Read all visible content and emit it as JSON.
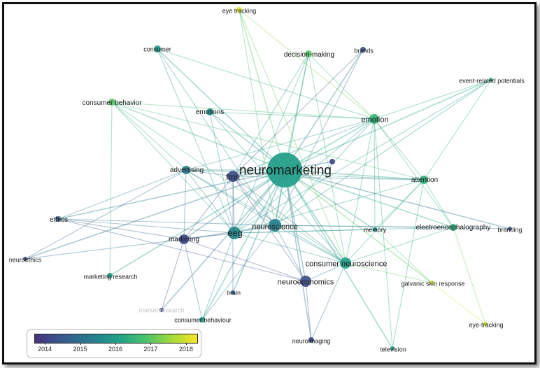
{
  "network": {
    "nodes": [
      {
        "id": "neuromarketing",
        "label": "neuromarketing",
        "year": 2015.9,
        "weight": 10
      },
      {
        "id": "eye-tracking-top",
        "label": "eye tracking",
        "year": 2018.0,
        "weight": 1
      },
      {
        "id": "consumer",
        "label": "consumer",
        "year": 2015.8,
        "weight": 2
      },
      {
        "id": "decision-making",
        "label": "decision-making",
        "year": 2016.9,
        "weight": 2
      },
      {
        "id": "brands",
        "label": "brands",
        "year": 2014.3,
        "weight": 1
      },
      {
        "id": "event-related-potentials",
        "label": "event-related potentials",
        "year": 2016.2,
        "weight": 1
      },
      {
        "id": "consumer-behavior",
        "label": "consumer behavior",
        "year": 2016.9,
        "weight": 2
      },
      {
        "id": "emotions",
        "label": "emotions",
        "year": 2015.6,
        "weight": 2
      },
      {
        "id": "emotion",
        "label": "emotion",
        "year": 2016.4,
        "weight": 3
      },
      {
        "id": "advertising",
        "label": "advertising",
        "year": 2015.2,
        "weight": 2
      },
      {
        "id": "fmri",
        "label": "fmri",
        "year": 2014.2,
        "weight": 3
      },
      {
        "id": "unlabeled",
        "label": "",
        "year": 2014.1,
        "weight": 1
      },
      {
        "id": "attention",
        "label": "attention",
        "year": 2016.3,
        "weight": 2
      },
      {
        "id": "ethics",
        "label": "ethics",
        "year": 2014.6,
        "weight": 1
      },
      {
        "id": "marketing",
        "label": "marketing",
        "year": 2014.1,
        "weight": 2
      },
      {
        "id": "eeg",
        "label": "eeg",
        "year": 2015.4,
        "weight": 4
      },
      {
        "id": "neuroscience",
        "label": "neuroscience",
        "year": 2015.3,
        "weight": 3
      },
      {
        "id": "memory",
        "label": "memory",
        "year": 2015.7,
        "weight": 1
      },
      {
        "id": "electroencephalography",
        "label": "electroencephalography",
        "year": 2016.3,
        "weight": 2
      },
      {
        "id": "branding",
        "label": "branding",
        "year": 2014.2,
        "weight": 1
      },
      {
        "id": "neuroethics",
        "label": "neuroethics",
        "year": 2014.1,
        "weight": 1
      },
      {
        "id": "consumer-neuroscience",
        "label": "consumer neuroscience",
        "year": 2016.0,
        "weight": 3
      },
      {
        "id": "marketing-research",
        "label": "marketing research",
        "year": 2015.9,
        "weight": 1
      },
      {
        "id": "neuroeconomics",
        "label": "neuroeconomics",
        "year": 2014.2,
        "weight": 3
      },
      {
        "id": "galvanic-skin-response",
        "label": "galvanic skin response",
        "year": 2018.0,
        "weight": 1
      },
      {
        "id": "brain",
        "label": "brain",
        "year": 2014.6,
        "weight": 1
      },
      {
        "id": "market-research",
        "label": "market research",
        "year": 2014.0,
        "weight": 1
      },
      {
        "id": "consumer-behaviour",
        "label": "consumer behaviour",
        "year": 2015.8,
        "weight": 1
      },
      {
        "id": "eye-tracking-bottom",
        "label": "eye-tracking",
        "year": 2017.9,
        "weight": 1
      },
      {
        "id": "neuroimaging",
        "label": "neuroimaging",
        "year": 2014.1,
        "weight": 1
      },
      {
        "id": "television",
        "label": "television",
        "year": 2015.9,
        "weight": 1
      }
    ],
    "edges": [
      [
        "neuromarketing",
        "eye-tracking-top"
      ],
      [
        "neuromarketing",
        "consumer"
      ],
      [
        "neuromarketing",
        "decision-making"
      ],
      [
        "neuromarketing",
        "brands"
      ],
      [
        "neuromarketing",
        "event-related-potentials"
      ],
      [
        "neuromarketing",
        "consumer-behavior"
      ],
      [
        "neuromarketing",
        "emotions"
      ],
      [
        "neuromarketing",
        "emotion"
      ],
      [
        "neuromarketing",
        "advertising"
      ],
      [
        "neuromarketing",
        "fmri"
      ],
      [
        "neuromarketing",
        "unlabeled"
      ],
      [
        "neuromarketing",
        "attention"
      ],
      [
        "neuromarketing",
        "ethics"
      ],
      [
        "neuromarketing",
        "marketing"
      ],
      [
        "neuromarketing",
        "eeg"
      ],
      [
        "neuromarketing",
        "neuroscience"
      ],
      [
        "neuromarketing",
        "memory"
      ],
      [
        "neuromarketing",
        "electroencephalography"
      ],
      [
        "neuromarketing",
        "branding"
      ],
      [
        "neuromarketing",
        "neuroethics"
      ],
      [
        "neuromarketing",
        "consumer-neuroscience"
      ],
      [
        "neuromarketing",
        "marketing-research"
      ],
      [
        "neuromarketing",
        "neuroeconomics"
      ],
      [
        "neuromarketing",
        "galvanic-skin-response"
      ],
      [
        "neuromarketing",
        "brain"
      ],
      [
        "neuromarketing",
        "market-research"
      ],
      [
        "neuromarketing",
        "consumer-behaviour"
      ],
      [
        "neuromarketing",
        "neuroimaging"
      ],
      [
        "neuromarketing",
        "television"
      ],
      [
        "eye-tracking-top",
        "emotion"
      ],
      [
        "eye-tracking-top",
        "neuroscience"
      ],
      [
        "eye-tracking-top",
        "consumer-neuroscience"
      ],
      [
        "consumer",
        "eeg"
      ],
      [
        "consumer",
        "emotion"
      ],
      [
        "consumer",
        "neuroscience"
      ],
      [
        "decision-making",
        "eeg"
      ],
      [
        "decision-making",
        "neuroscience"
      ],
      [
        "decision-making",
        "consumer-neuroscience"
      ],
      [
        "decision-making",
        "emotion"
      ],
      [
        "decision-making",
        "fmri"
      ],
      [
        "brands",
        "fmri"
      ],
      [
        "brands",
        "neuroscience"
      ],
      [
        "event-related-potentials",
        "eeg"
      ],
      [
        "event-related-potentials",
        "emotion"
      ],
      [
        "event-related-potentials",
        "neuroscience"
      ],
      [
        "event-related-potentials",
        "attention"
      ],
      [
        "consumer-behavior",
        "eeg"
      ],
      [
        "consumer-behavior",
        "emotion"
      ],
      [
        "consumer-behavior",
        "attention"
      ],
      [
        "consumer-behavior",
        "marketing-research"
      ],
      [
        "consumer-behavior",
        "advertising"
      ],
      [
        "consumer-behavior",
        "consumer-neuroscience"
      ],
      [
        "emotions",
        "eeg"
      ],
      [
        "emotions",
        "consumer-neuroscience"
      ],
      [
        "emotions",
        "emotion"
      ],
      [
        "emotion",
        "eeg"
      ],
      [
        "emotion",
        "attention"
      ],
      [
        "emotion",
        "advertising"
      ],
      [
        "emotion",
        "memory"
      ],
      [
        "emotion",
        "electroencephalography"
      ],
      [
        "emotion",
        "fmri"
      ],
      [
        "emotion",
        "neuroscience"
      ],
      [
        "emotion",
        "consumer-neuroscience"
      ],
      [
        "emotion",
        "television"
      ],
      [
        "advertising",
        "eeg"
      ],
      [
        "advertising",
        "attention"
      ],
      [
        "advertising",
        "ethics"
      ],
      [
        "advertising",
        "marketing"
      ],
      [
        "advertising",
        "neuroscience"
      ],
      [
        "advertising",
        "consumer-neuroscience"
      ],
      [
        "advertising",
        "fmri"
      ],
      [
        "advertising",
        "neuroethics"
      ],
      [
        "fmri",
        "eeg"
      ],
      [
        "fmri",
        "marketing"
      ],
      [
        "fmri",
        "neuroeconomics"
      ],
      [
        "fmri",
        "consumer-neuroscience"
      ],
      [
        "fmri",
        "neuroscience"
      ],
      [
        "fmri",
        "brain"
      ],
      [
        "fmri",
        "attention"
      ],
      [
        "attention",
        "eeg"
      ],
      [
        "attention",
        "memory"
      ],
      [
        "attention",
        "electroencephalography"
      ],
      [
        "attention",
        "consumer-neuroscience"
      ],
      [
        "attention",
        "television"
      ],
      [
        "ethics",
        "eeg"
      ],
      [
        "ethics",
        "marketing"
      ],
      [
        "ethics",
        "neuroscience"
      ],
      [
        "ethics",
        "neuroeconomics"
      ],
      [
        "marketing",
        "eeg"
      ],
      [
        "marketing",
        "neuroscience"
      ],
      [
        "marketing",
        "neuroeconomics"
      ],
      [
        "marketing",
        "market-research"
      ],
      [
        "marketing",
        "consumer-behaviour"
      ],
      [
        "eeg",
        "neuroscience"
      ],
      [
        "eeg",
        "electroencephalography"
      ],
      [
        "eeg",
        "consumer-neuroscience"
      ],
      [
        "eeg",
        "memory"
      ],
      [
        "eeg",
        "neuroethics"
      ],
      [
        "eeg",
        "consumer-behaviour"
      ],
      [
        "neuroscience",
        "consumer-neuroscience"
      ],
      [
        "neuroscience",
        "neuroeconomics"
      ],
      [
        "neuroscience",
        "electroencephalography"
      ],
      [
        "neuroscience",
        "consumer-behaviour"
      ],
      [
        "neuroscience",
        "branding"
      ],
      [
        "consumer-neuroscience",
        "galvanic-skin-response"
      ],
      [
        "consumer-neuroscience",
        "electroencephalography"
      ],
      [
        "consumer-neuroscience",
        "neuroimaging"
      ],
      [
        "consumer-neuroscience",
        "neuroeconomics"
      ],
      [
        "neuroeconomics",
        "neuroimaging"
      ],
      [
        "electroencephalography",
        "eye-tracking-bottom"
      ],
      [
        "galvanic-skin-response",
        "eye-tracking-bottom"
      ],
      [
        "memory",
        "galvanic-skin-response"
      ]
    ]
  },
  "legend": {
    "ticks": [
      "2014",
      "2015",
      "2016",
      "2017",
      "2018"
    ],
    "range": [
      2013.7,
      2018.3
    ],
    "colors": [
      "#46327e",
      "#365c8d",
      "#277f8e",
      "#1fa187",
      "#4ac16d",
      "#a0da39",
      "#fde725"
    ]
  }
}
